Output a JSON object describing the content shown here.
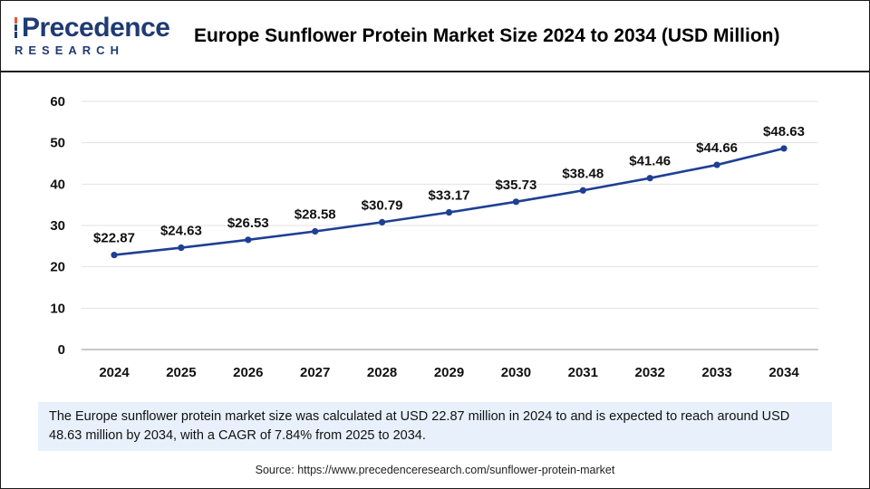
{
  "logo": {
    "main": "Precedence",
    "sub": "RESEARCH"
  },
  "title": "Europe Sunflower Protein Market Size 2024 to 2034 (USD Million)",
  "chart_data": {
    "type": "line",
    "title": "Europe Sunflower Protein Market Size 2024 to 2034 (USD Million)",
    "xlabel": "",
    "ylabel": "",
    "ylim": [
      0,
      60
    ],
    "yticks": [
      0,
      10,
      20,
      30,
      40,
      50,
      60
    ],
    "categories": [
      "2024",
      "2025",
      "2026",
      "2027",
      "2028",
      "2029",
      "2030",
      "2031",
      "2032",
      "2033",
      "2034"
    ],
    "series": [
      {
        "name": "Market Size",
        "values": [
          22.87,
          24.63,
          26.53,
          28.58,
          30.79,
          33.17,
          35.73,
          38.48,
          41.46,
          44.66,
          48.63
        ],
        "labels": [
          "$22.87",
          "$24.63",
          "$26.53",
          "$28.58",
          "$30.79",
          "$33.17",
          "$35.73",
          "$38.48",
          "$41.46",
          "$44.66",
          "$48.63"
        ]
      }
    ],
    "grid": true,
    "line_color": "#1f3f94"
  },
  "description": "The Europe sunflower protein market size was calculated at USD 22.87 million in 2024 to and is expected to reach around USD 48.63 million by 2034, with a CAGR of 7.84% from 2025 to 2034.",
  "source": "Source: https://www.precedenceresearch.com/sunflower-protein-market"
}
